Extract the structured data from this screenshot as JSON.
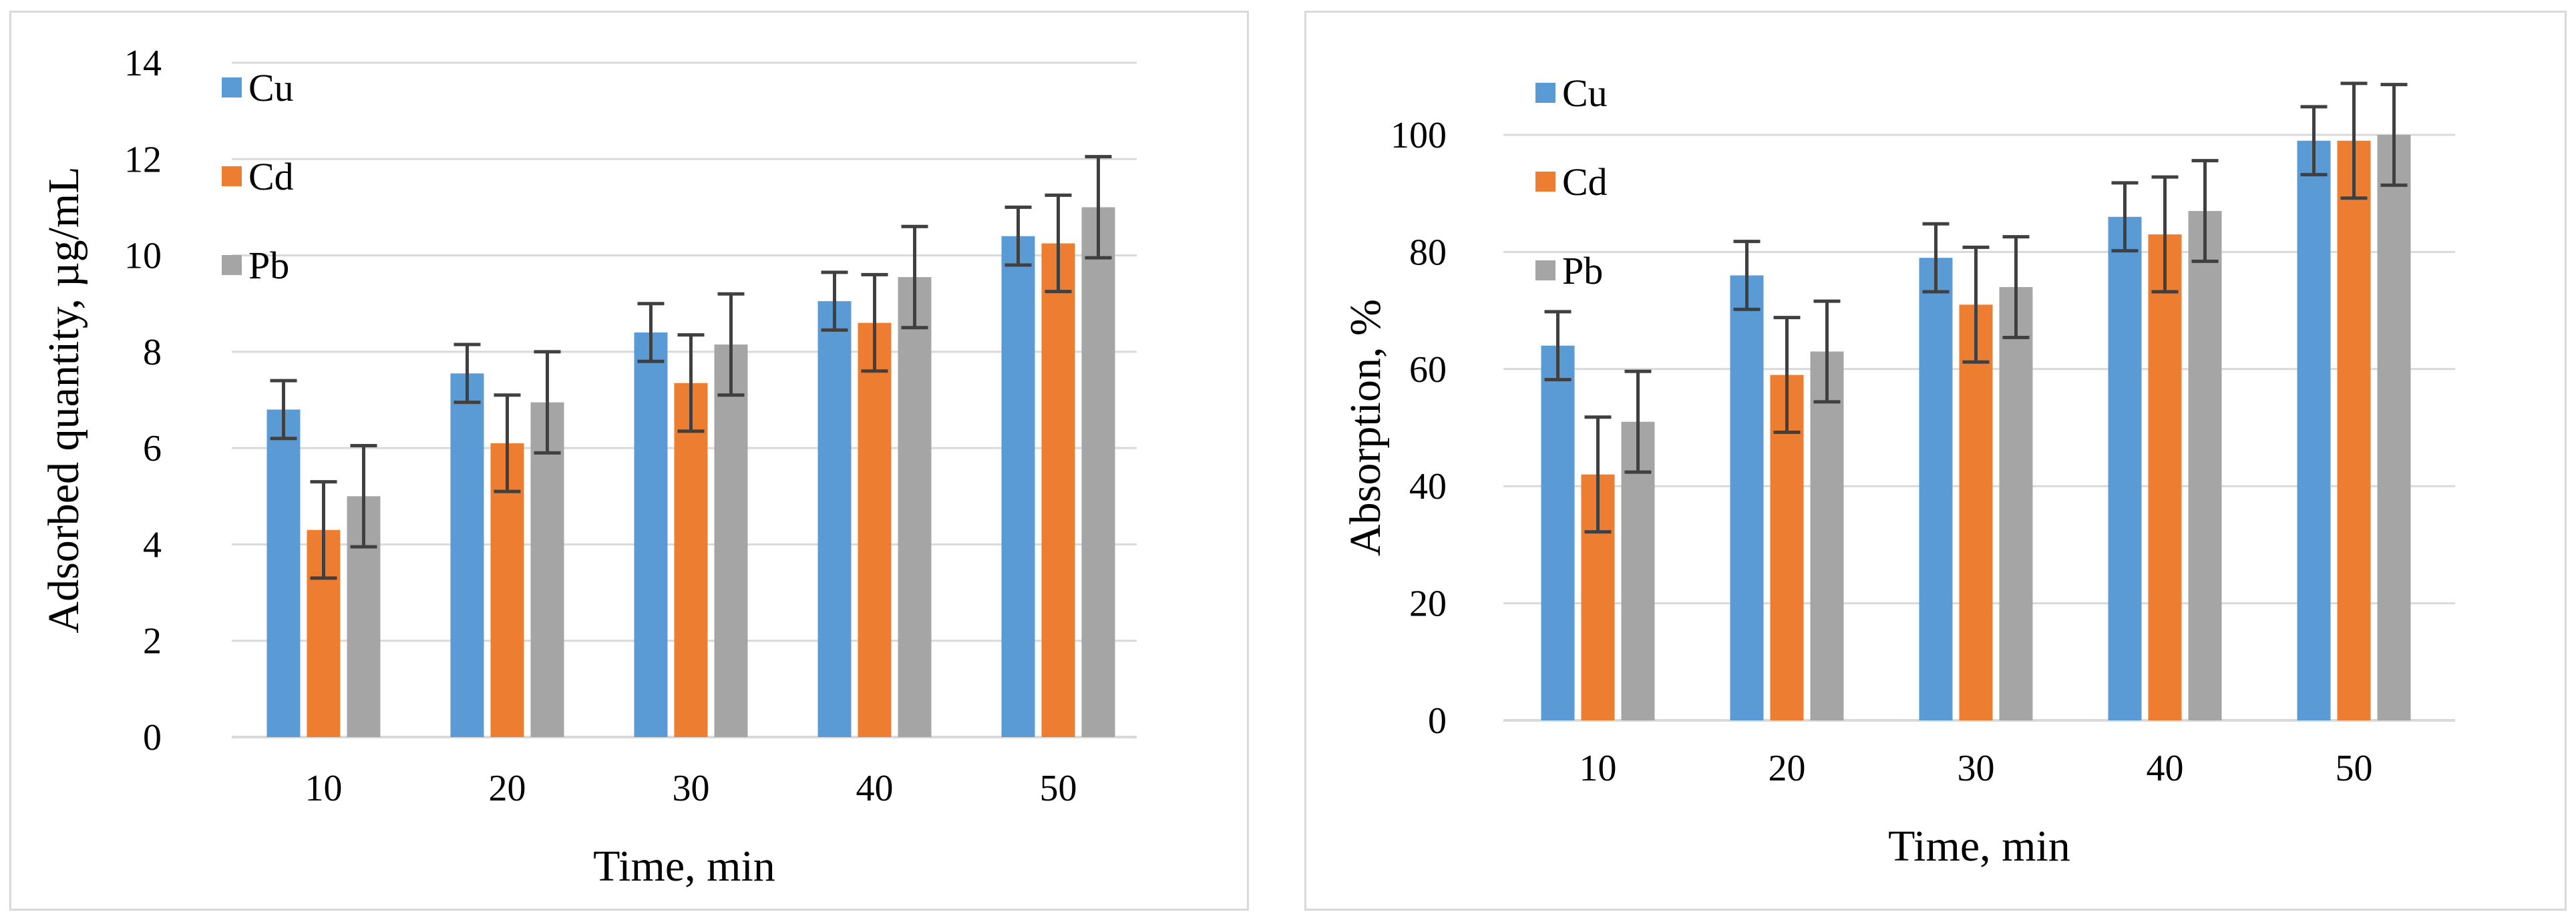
{
  "chart_data": [
    {
      "type": "bar",
      "categories": [
        "10",
        "20",
        "30",
        "40",
        "50"
      ],
      "xlabel": "Time, min",
      "ylabel": "Adsorbed quantity, µg/mL",
      "ylim": [
        0,
        14
      ],
      "ytick_step": 2,
      "yticks": [
        "0",
        "2",
        "4",
        "6",
        "8",
        "10",
        "12",
        "14"
      ],
      "grid": true,
      "legend": "top-left",
      "series": [
        {
          "name": "Cu",
          "color": "#5B9BD5",
          "values": [
            6.8,
            7.55,
            8.4,
            9.05,
            10.4
          ],
          "errors": [
            0.6,
            0.6,
            0.6,
            0.6,
            0.6
          ]
        },
        {
          "name": "Cd",
          "color": "#ED7D31",
          "values": [
            4.3,
            6.1,
            7.35,
            8.6,
            10.25
          ],
          "errors": [
            1.0,
            1.0,
            1.0,
            1.0,
            1.0
          ]
        },
        {
          "name": "Pb",
          "color": "#A5A5A5",
          "values": [
            5.0,
            6.95,
            8.15,
            9.55,
            11.0
          ],
          "errors": [
            1.05,
            1.05,
            1.05,
            1.05,
            1.05
          ]
        }
      ]
    },
    {
      "type": "bar",
      "categories": [
        "10",
        "20",
        "30",
        "40",
        "50"
      ],
      "xlabel": "Time, min",
      "ylabel": "Absorption, %",
      "ylim": [
        0,
        100
      ],
      "ytick_step": 20,
      "yticks": [
        "0",
        "20",
        "40",
        "60",
        "80",
        "100"
      ],
      "grid": true,
      "legend": "top-left",
      "series": [
        {
          "name": "Cu",
          "color": "#5B9BD5",
          "values": [
            64,
            76,
            79,
            86,
            99
          ],
          "errors": [
            5.8,
            5.8,
            5.8,
            5.8,
            5.8
          ]
        },
        {
          "name": "Cd",
          "color": "#ED7D31",
          "values": [
            42,
            59,
            71,
            83,
            99
          ],
          "errors": [
            9.8,
            9.8,
            9.8,
            9.8,
            9.8
          ]
        },
        {
          "name": "Pb",
          "color": "#A5A5A5",
          "values": [
            51,
            63,
            74,
            87,
            100
          ],
          "errors": [
            8.6,
            8.6,
            8.6,
            8.6,
            8.6
          ]
        }
      ]
    }
  ]
}
